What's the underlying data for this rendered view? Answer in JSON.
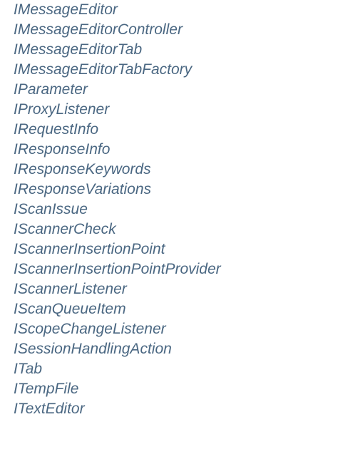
{
  "classes": [
    "IMessageEditor",
    "IMessageEditorController",
    "IMessageEditorTab",
    "IMessageEditorTabFactory",
    "IParameter",
    "IProxyListener",
    "IRequestInfo",
    "IResponseInfo",
    "IResponseKeywords",
    "IResponseVariations",
    "IScanIssue",
    "IScannerCheck",
    "IScannerInsertionPoint",
    "IScannerInsertionPointProvider",
    "IScannerListener",
    "IScanQueueItem",
    "IScopeChangeListener",
    "ISessionHandlingAction",
    "ITab",
    "ITempFile",
    "ITextEditor"
  ],
  "colors": {
    "link": "#4a6782",
    "background": "#ffffff"
  }
}
